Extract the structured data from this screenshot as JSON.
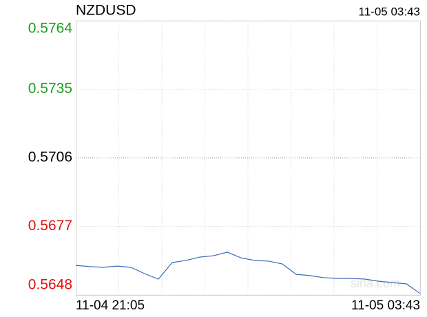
{
  "chart_data": {
    "type": "line",
    "title": "NZDUSD",
    "timestamp": "11-05 03:43",
    "watermark": "sina.com",
    "categories": [
      "11-04 21:05",
      null,
      null,
      null,
      null,
      null,
      null,
      null,
      null,
      null,
      null,
      null,
      null,
      null,
      null,
      null,
      null,
      null,
      null,
      null,
      null,
      null,
      null,
      null,
      null,
      "11-05 03:43"
    ],
    "series": [
      {
        "name": "NZDUSD",
        "color": "#3a6bb5",
        "values": [
          0.56605,
          0.566,
          0.56597,
          0.56602,
          0.56597,
          0.5657,
          0.56547,
          0.56617,
          0.56626,
          0.5664,
          0.56646,
          0.56661,
          0.56637,
          0.56626,
          0.56623,
          0.56611,
          0.56567,
          0.56562,
          0.56553,
          0.5655,
          0.5655,
          0.56547,
          0.56538,
          0.56532,
          0.56527,
          0.56486
        ]
      }
    ],
    "ylim": [
      0.5648,
      0.5764
    ],
    "yticks": [
      0.5764,
      0.5735,
      0.5706,
      0.5677,
      0.5648
    ],
    "ytick_colors": [
      "#1a9e1a",
      "#1a9e1a",
      "#000000",
      "#e01010",
      "#e01010"
    ],
    "x_divisions": 8,
    "grid": true
  }
}
